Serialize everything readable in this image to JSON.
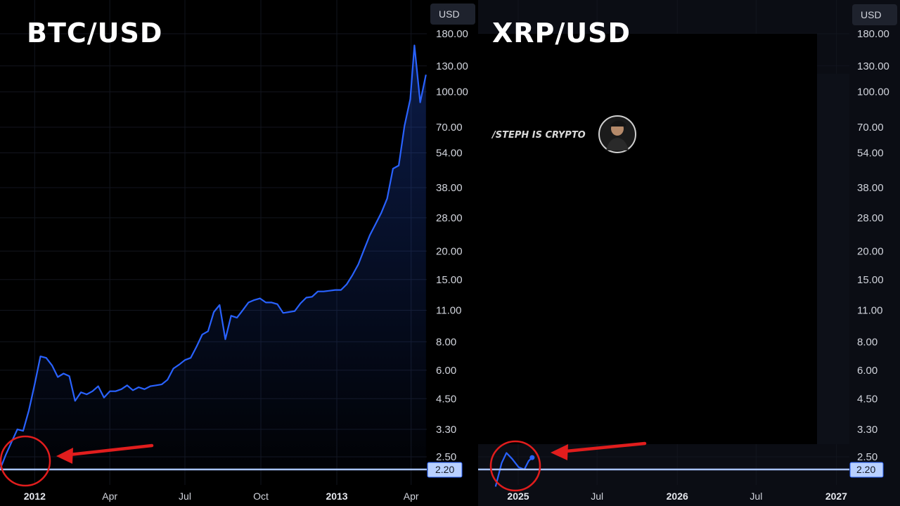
{
  "chart_data": [
    {
      "type": "line",
      "title": "BTC/USD",
      "currency": "USD",
      "y_scale": "log",
      "ylim": [
        2.0,
        180
      ],
      "y_ticks": [
        "180.00",
        "130.00",
        "100.00",
        "70.00",
        "54.00",
        "38.00",
        "28.00",
        "20.00",
        "15.00",
        "11.00",
        "8.00",
        "6.00",
        "4.50",
        "3.30",
        "2.50"
      ],
      "x_ticks": [
        {
          "label": "2012",
          "bold": true
        },
        {
          "label": "Apr",
          "bold": false
        },
        {
          "label": "Jul",
          "bold": false
        },
        {
          "label": "Oct",
          "bold": false
        },
        {
          "label": "2013",
          "bold": true
        },
        {
          "label": "Apr",
          "bold": false
        }
      ],
      "xlim": [
        "2011-11-20",
        "2013-04-20"
      ],
      "current_price": "2.20",
      "line_color": "#2962ff",
      "annotation": "red circle and arrow highlighting the 2.20 starting level",
      "series": [
        {
          "points": [
            [
              "2011-11-20",
              2.2
            ],
            [
              "2011-11-27",
              2.55
            ],
            [
              "2011-12-04",
              2.9
            ],
            [
              "2011-12-11",
              3.3
            ],
            [
              "2011-12-18",
              3.25
            ],
            [
              "2011-12-25",
              4.0
            ],
            [
              "2012-01-01",
              5.2
            ],
            [
              "2012-01-08",
              6.9
            ],
            [
              "2012-01-15",
              6.8
            ],
            [
              "2012-01-22",
              6.3
            ],
            [
              "2012-01-29",
              5.6
            ],
            [
              "2012-02-05",
              5.8
            ],
            [
              "2012-02-12",
              5.65
            ],
            [
              "2012-02-19",
              4.4
            ],
            [
              "2012-02-26",
              4.8
            ],
            [
              "2012-03-04",
              4.7
            ],
            [
              "2012-03-11",
              4.85
            ],
            [
              "2012-03-18",
              5.1
            ],
            [
              "2012-03-25",
              4.55
            ],
            [
              "2012-04-01",
              4.85
            ],
            [
              "2012-04-08",
              4.85
            ],
            [
              "2012-04-15",
              4.95
            ],
            [
              "2012-04-22",
              5.15
            ],
            [
              "2012-04-29",
              4.9
            ],
            [
              "2012-05-06",
              5.05
            ],
            [
              "2012-05-13",
              4.95
            ],
            [
              "2012-05-20",
              5.1
            ],
            [
              "2012-05-27",
              5.15
            ],
            [
              "2012-06-03",
              5.2
            ],
            [
              "2012-06-10",
              5.45
            ],
            [
              "2012-06-17",
              6.1
            ],
            [
              "2012-06-24",
              6.35
            ],
            [
              "2012-07-01",
              6.65
            ],
            [
              "2012-07-08",
              6.8
            ],
            [
              "2012-07-15",
              7.6
            ],
            [
              "2012-07-22",
              8.6
            ],
            [
              "2012-07-29",
              8.9
            ],
            [
              "2012-08-05",
              10.8
            ],
            [
              "2012-08-12",
              11.6
            ],
            [
              "2012-08-19",
              8.2
            ],
            [
              "2012-08-26",
              10.4
            ],
            [
              "2012-09-02",
              10.2
            ],
            [
              "2012-09-09",
              11.0
            ],
            [
              "2012-09-16",
              11.9
            ],
            [
              "2012-09-23",
              12.2
            ],
            [
              "2012-09-30",
              12.4
            ],
            [
              "2012-10-07",
              11.9
            ],
            [
              "2012-10-14",
              11.9
            ],
            [
              "2012-10-21",
              11.7
            ],
            [
              "2012-10-28",
              10.7
            ],
            [
              "2012-11-04",
              10.8
            ],
            [
              "2012-11-11",
              10.9
            ],
            [
              "2012-11-18",
              11.8
            ],
            [
              "2012-11-25",
              12.5
            ],
            [
              "2012-12-02",
              12.6
            ],
            [
              "2012-12-09",
              13.3
            ],
            [
              "2012-12-16",
              13.3
            ],
            [
              "2012-12-23",
              13.4
            ],
            [
              "2012-12-30",
              13.5
            ],
            [
              "2013-01-06",
              13.5
            ],
            [
              "2013-01-13",
              14.3
            ],
            [
              "2013-01-20",
              15.7
            ],
            [
              "2013-01-27",
              17.5
            ],
            [
              "2013-02-03",
              20.3
            ],
            [
              "2013-02-10",
              23.5
            ],
            [
              "2013-02-17",
              26.3
            ],
            [
              "2013-02-24",
              29.5
            ],
            [
              "2013-03-03",
              34.0
            ],
            [
              "2013-03-10",
              46.0
            ],
            [
              "2013-03-17",
              47.5
            ],
            [
              "2013-03-24",
              71.0
            ],
            [
              "2013-03-31",
              93.0
            ],
            [
              "2013-04-05",
              160.0
            ],
            [
              "2013-04-12",
              90.0
            ],
            [
              "2013-04-19",
              119.0
            ]
          ]
        }
      ]
    },
    {
      "type": "line",
      "title": "XRP/USD",
      "currency": "USD",
      "y_scale": "log",
      "ylim": [
        2.0,
        180
      ],
      "y_ticks": [
        "180.00",
        "130.00",
        "100.00",
        "70.00",
        "54.00",
        "38.00",
        "28.00",
        "20.00",
        "15.00",
        "11.00",
        "8.00",
        "6.00",
        "4.50",
        "3.30",
        "2.50"
      ],
      "x_ticks": [
        {
          "label": "2025",
          "bold": true
        },
        {
          "label": "Jul",
          "bold": false
        },
        {
          "label": "2026",
          "bold": true
        },
        {
          "label": "Jul",
          "bold": false
        },
        {
          "label": "2027",
          "bold": true
        }
      ],
      "xlim": [
        "2024-10-01",
        "2027-01-31"
      ],
      "current_price": "2.20",
      "line_color": "#2962ff",
      "annotation": "red circle and arrow highlighting the current XRP level near 2.20",
      "watermark": "/STEPH IS CRYPTO",
      "series": [
        {
          "points": [
            [
              "2024-11-10",
              1.85
            ],
            [
              "2024-11-24",
              2.35
            ],
            [
              "2024-12-05",
              2.6
            ],
            [
              "2024-12-18",
              2.45
            ],
            [
              "2025-01-02",
              2.25
            ],
            [
              "2025-01-15",
              2.2
            ],
            [
              "2025-01-25",
              2.4
            ],
            [
              "2025-02-02",
              2.48
            ]
          ]
        }
      ]
    }
  ]
}
